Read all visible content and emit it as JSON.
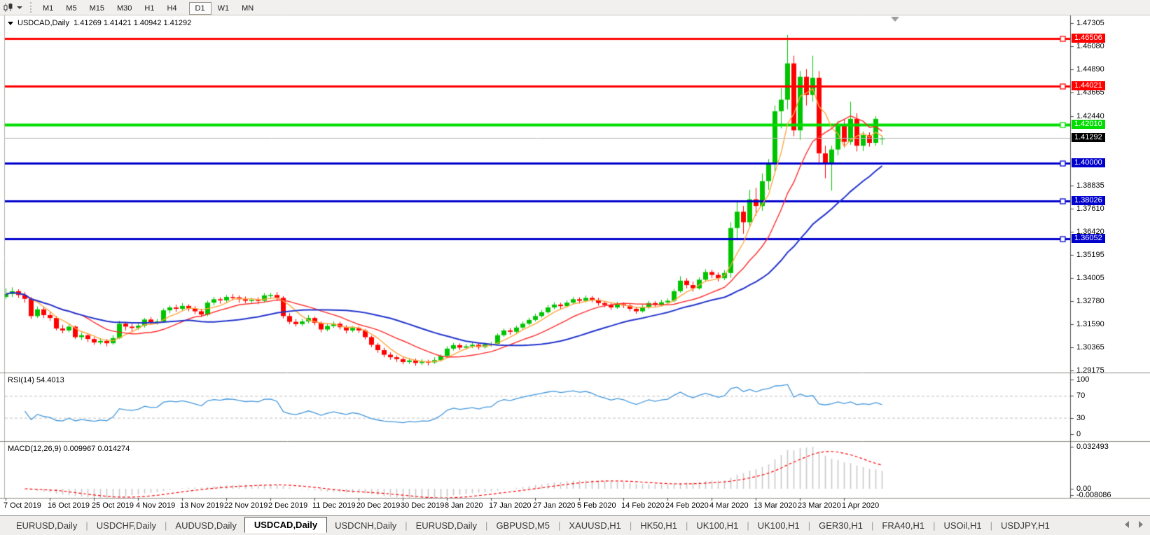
{
  "toolbar": {
    "chart_type_icon": "candlestick-chart-icon",
    "timeframes": [
      "M1",
      "M5",
      "M15",
      "M30",
      "H1",
      "H4",
      "D1",
      "W1",
      "MN"
    ],
    "active_timeframe": "D1"
  },
  "chart_data": {
    "type": "candlestick",
    "symbol": "USDCAD,Daily",
    "title_line": "USDCAD,Daily  1.41269 1.41421 1.40942 1.41292",
    "ohlc_display": {
      "open": "1.41269",
      "high": "1.41421",
      "low": "1.40942",
      "close": "1.41292"
    },
    "ylim": [
      1.29087,
      1.47707
    ],
    "up_color": "#00c400",
    "down_color": "#ff0000",
    "price_axis_ticks": [
      "1.47305",
      "1.46080",
      "1.44890",
      "1.43665",
      "1.42440",
      "1.38835",
      "1.37610",
      "1.36420",
      "1.35195",
      "1.34005",
      "1.32780",
      "1.31590",
      "1.30365",
      "1.29175"
    ],
    "levels": [
      {
        "value": 1.46506,
        "label": "1.46506",
        "color": "#ff0000",
        "width": 3
      },
      {
        "value": 1.44021,
        "label": "1.44021",
        "color": "#ff0000",
        "width": 3
      },
      {
        "value": 1.4201,
        "label": "1.42010",
        "color": "#00dd00",
        "width": 4
      },
      {
        "value": 1.4,
        "label": "1.40000",
        "color": "#0000cd",
        "width": 3
      },
      {
        "value": 1.38026,
        "label": "1.38026",
        "color": "#0000cd",
        "width": 3
      },
      {
        "value": 1.36052,
        "label": "1.36052",
        "color": "#0000cd",
        "width": 3
      }
    ],
    "current_price": {
      "value": 1.41292,
      "label": "1.41292",
      "line_color": "#b9b9b9",
      "badge_bg": "#000000"
    },
    "moving_averages": [
      {
        "name": "ma-fast",
        "period": 5,
        "color": "#ffa640",
        "width": 1.4
      },
      {
        "name": "ma-medium",
        "period": 13,
        "color": "#ff2a2a",
        "width": 1.4
      },
      {
        "name": "ma-slow",
        "period": 30,
        "color": "#2233cc",
        "width": 2
      }
    ],
    "x_labels": [
      "7 Oct 2019",
      "16 Oct 2019",
      "25 Oct 2019",
      "4 Nov 2019",
      "13 Nov 2019",
      "22 Nov 2019",
      "2 Dec 2019",
      "11 Dec 2019",
      "20 Dec 2019",
      "30 Dec 2019",
      "8 Jan 2020",
      "17 Jan 2020",
      "27 Jan 2020",
      "5 Feb 2020",
      "14 Feb 2020",
      "24 Feb 2020",
      "4 Mar 2020",
      "13 Mar 2020",
      "23 Mar 2020",
      "1 Apr 2020"
    ],
    "x_label_step": 7,
    "candles": [
      [
        1.33,
        1.3345,
        1.329,
        1.3315
      ],
      [
        1.3315,
        1.335,
        1.33,
        1.333
      ],
      [
        1.333,
        1.334,
        1.3295,
        1.331
      ],
      [
        1.331,
        1.3325,
        1.327,
        1.329
      ],
      [
        1.329,
        1.33,
        1.3185,
        1.32
      ],
      [
        1.32,
        1.325,
        1.319,
        1.3235
      ],
      [
        1.3235,
        1.3245,
        1.319,
        1.3205
      ],
      [
        1.3205,
        1.322,
        1.3175,
        1.319
      ],
      [
        1.319,
        1.32,
        1.3125,
        1.3135
      ],
      [
        1.3135,
        1.3155,
        1.311,
        1.3125
      ],
      [
        1.3125,
        1.316,
        1.3115,
        1.3145
      ],
      [
        1.3145,
        1.315,
        1.308,
        1.309
      ],
      [
        1.309,
        1.3115,
        1.3075,
        1.31
      ],
      [
        1.31,
        1.311,
        1.3065,
        1.308
      ],
      [
        1.308,
        1.309,
        1.305,
        1.3062
      ],
      [
        1.3062,
        1.3085,
        1.3052,
        1.307
      ],
      [
        1.307,
        1.308,
        1.3042,
        1.3058
      ],
      [
        1.3058,
        1.31,
        1.305,
        1.3085
      ],
      [
        1.3085,
        1.3175,
        1.308,
        1.316
      ],
      [
        1.316,
        1.317,
        1.3125,
        1.3145
      ],
      [
        1.3145,
        1.316,
        1.312,
        1.3138
      ],
      [
        1.3138,
        1.3165,
        1.3128,
        1.315
      ],
      [
        1.315,
        1.319,
        1.314,
        1.3182
      ],
      [
        1.3182,
        1.3195,
        1.3155,
        1.3168
      ],
      [
        1.3168,
        1.3185,
        1.3155,
        1.3172
      ],
      [
        1.3172,
        1.324,
        1.3165,
        1.323
      ],
      [
        1.323,
        1.3255,
        1.3215,
        1.3245
      ],
      [
        1.3245,
        1.326,
        1.3222,
        1.3238
      ],
      [
        1.3238,
        1.3268,
        1.3228,
        1.3253
      ],
      [
        1.3253,
        1.3262,
        1.3225,
        1.324
      ],
      [
        1.324,
        1.3252,
        1.321,
        1.3225
      ],
      [
        1.3225,
        1.3238,
        1.3195,
        1.3208
      ],
      [
        1.3208,
        1.328,
        1.32,
        1.327
      ],
      [
        1.327,
        1.33,
        1.3255,
        1.3288
      ],
      [
        1.3288,
        1.3298,
        1.3265,
        1.3282
      ],
      [
        1.3282,
        1.331,
        1.327,
        1.33
      ],
      [
        1.33,
        1.3315,
        1.3282,
        1.3298
      ],
      [
        1.3298,
        1.3308,
        1.327,
        1.3288
      ],
      [
        1.3288,
        1.3302,
        1.3268,
        1.328
      ],
      [
        1.328,
        1.3295,
        1.3265,
        1.3284
      ],
      [
        1.3284,
        1.3298,
        1.3262,
        1.328
      ],
      [
        1.328,
        1.332,
        1.327,
        1.3308
      ],
      [
        1.3308,
        1.3322,
        1.329,
        1.331
      ],
      [
        1.331,
        1.3325,
        1.3278,
        1.3295
      ],
      [
        1.3295,
        1.3305,
        1.3188,
        1.32
      ],
      [
        1.32,
        1.3215,
        1.3158,
        1.317
      ],
      [
        1.317,
        1.3185,
        1.3145,
        1.3158
      ],
      [
        1.3158,
        1.3185,
        1.3148,
        1.3172
      ],
      [
        1.3172,
        1.3205,
        1.3162,
        1.319
      ],
      [
        1.319,
        1.3198,
        1.3152,
        1.3165
      ],
      [
        1.3165,
        1.3172,
        1.3115,
        1.313
      ],
      [
        1.313,
        1.316,
        1.312,
        1.3148
      ],
      [
        1.3148,
        1.3172,
        1.3138,
        1.316
      ],
      [
        1.316,
        1.317,
        1.313,
        1.3142
      ],
      [
        1.3142,
        1.3152,
        1.311,
        1.3125
      ],
      [
        1.3125,
        1.3148,
        1.3115,
        1.3138
      ],
      [
        1.3138,
        1.3145,
        1.3112,
        1.3125
      ],
      [
        1.3125,
        1.3132,
        1.3078,
        1.309
      ],
      [
        1.309,
        1.3098,
        1.3038,
        1.305
      ],
      [
        1.305,
        1.306,
        1.3008,
        1.3022
      ],
      [
        1.3022,
        1.3035,
        1.2985,
        1.2998
      ],
      [
        1.2998,
        1.301,
        1.2972,
        1.2985
      ],
      [
        1.2985,
        1.2995,
        1.296,
        1.2975
      ],
      [
        1.2975,
        1.2985,
        1.2948,
        1.296
      ],
      [
        1.296,
        1.298,
        1.295,
        1.2968
      ],
      [
        1.2968,
        1.2978,
        1.294,
        1.2955
      ],
      [
        1.2955,
        1.2975,
        1.2945,
        1.2962
      ],
      [
        1.2962,
        1.2972,
        1.2942,
        1.2958
      ],
      [
        1.2958,
        1.2985,
        1.295,
        1.297
      ],
      [
        1.297,
        1.3,
        1.2962,
        1.2992
      ],
      [
        1.2992,
        1.3042,
        1.2985,
        1.303
      ],
      [
        1.303,
        1.306,
        1.302,
        1.3048
      ],
      [
        1.3048,
        1.3058,
        1.3022,
        1.3035
      ],
      [
        1.3035,
        1.3055,
        1.3025,
        1.3042
      ],
      [
        1.3042,
        1.3062,
        1.3032,
        1.305
      ],
      [
        1.305,
        1.3058,
        1.3025,
        1.3038
      ],
      [
        1.3038,
        1.3062,
        1.303,
        1.3052
      ],
      [
        1.3052,
        1.3065,
        1.304,
        1.3055
      ],
      [
        1.3055,
        1.311,
        1.3048,
        1.31
      ],
      [
        1.31,
        1.3135,
        1.3092,
        1.3125
      ],
      [
        1.3125,
        1.3138,
        1.3102,
        1.3118
      ],
      [
        1.3118,
        1.315,
        1.311,
        1.314
      ],
      [
        1.314,
        1.3172,
        1.3132,
        1.316
      ],
      [
        1.316,
        1.3192,
        1.3152,
        1.318
      ],
      [
        1.318,
        1.3212,
        1.3172,
        1.32
      ],
      [
        1.32,
        1.3232,
        1.3192,
        1.322
      ],
      [
        1.322,
        1.3258,
        1.3212,
        1.3245
      ],
      [
        1.3245,
        1.3272,
        1.3235,
        1.326
      ],
      [
        1.326,
        1.327,
        1.3238,
        1.3252
      ],
      [
        1.3252,
        1.3282,
        1.3244,
        1.327
      ],
      [
        1.327,
        1.33,
        1.3262,
        1.3288
      ],
      [
        1.3288,
        1.3298,
        1.3265,
        1.328
      ],
      [
        1.328,
        1.3308,
        1.3272,
        1.3295
      ],
      [
        1.3295,
        1.3305,
        1.3272,
        1.3285
      ],
      [
        1.3285,
        1.3295,
        1.3255,
        1.3268
      ],
      [
        1.3268,
        1.3278,
        1.3245,
        1.3258
      ],
      [
        1.3258,
        1.3268,
        1.3232,
        1.3245
      ],
      [
        1.3245,
        1.3275,
        1.3238,
        1.3262
      ],
      [
        1.3262,
        1.3272,
        1.3242,
        1.3255
      ],
      [
        1.3255,
        1.3265,
        1.3225,
        1.3238
      ],
      [
        1.3238,
        1.3248,
        1.3212,
        1.3225
      ],
      [
        1.3225,
        1.3258,
        1.3218,
        1.3245
      ],
      [
        1.3245,
        1.328,
        1.3238,
        1.3268
      ],
      [
        1.3268,
        1.3278,
        1.3245,
        1.3258
      ],
      [
        1.3258,
        1.3285,
        1.325,
        1.3272
      ],
      [
        1.3272,
        1.3292,
        1.3262,
        1.328
      ],
      [
        1.328,
        1.3342,
        1.3272,
        1.333
      ],
      [
        1.333,
        1.3408,
        1.3322,
        1.3385
      ],
      [
        1.3385,
        1.3398,
        1.3345,
        1.3362
      ],
      [
        1.3362,
        1.338,
        1.3328,
        1.3345
      ],
      [
        1.3345,
        1.3402,
        1.3338,
        1.339
      ],
      [
        1.339,
        1.3445,
        1.3382,
        1.343
      ],
      [
        1.343,
        1.3442,
        1.3398,
        1.3415
      ],
      [
        1.3415,
        1.3428,
        1.338,
        1.3398
      ],
      [
        1.3398,
        1.344,
        1.3388,
        1.3425
      ],
      [
        1.3425,
        1.369,
        1.34,
        1.366
      ],
      [
        1.366,
        1.38,
        1.36,
        1.3745
      ],
      [
        1.3745,
        1.3775,
        1.363,
        1.369
      ],
      [
        1.369,
        1.386,
        1.366,
        1.381
      ],
      [
        1.381,
        1.387,
        1.3725,
        1.3775
      ],
      [
        1.3775,
        1.3945,
        1.375,
        1.3905
      ],
      [
        1.3905,
        1.402,
        1.386,
        1.3995
      ],
      [
        1.3995,
        1.43,
        1.395,
        1.427
      ],
      [
        1.427,
        1.439,
        1.418,
        1.433
      ],
      [
        1.433,
        1.4669,
        1.428,
        1.452
      ],
      [
        1.452,
        1.456,
        1.414,
        1.417
      ],
      [
        1.417,
        1.448,
        1.412,
        1.445
      ],
      [
        1.445,
        1.449,
        1.43,
        1.4355
      ],
      [
        1.4355,
        1.456,
        1.432,
        1.4445
      ],
      [
        1.4445,
        1.448,
        1.399,
        1.405
      ],
      [
        1.405,
        1.409,
        1.392,
        1.3995
      ],
      [
        1.3995,
        1.409,
        1.3855,
        1.407
      ],
      [
        1.407,
        1.422,
        1.404,
        1.42
      ],
      [
        1.42,
        1.423,
        1.408,
        1.411
      ],
      [
        1.411,
        1.432,
        1.4095,
        1.423
      ],
      [
        1.423,
        1.426,
        1.406,
        1.409
      ],
      [
        1.409,
        1.4165,
        1.4062,
        1.4145
      ],
      [
        1.4145,
        1.416,
        1.4085,
        1.4105
      ],
      [
        1.4105,
        1.4245,
        1.409,
        1.423
      ],
      [
        1.41269,
        1.41421,
        1.40942,
        1.41292
      ]
    ],
    "rsi": {
      "label": "RSI(14) 54.4013",
      "period": 14,
      "value": "54.4013",
      "levels": [
        70,
        30
      ],
      "axis_ticks": [
        "100",
        "70",
        "30",
        "0"
      ],
      "color": "#4296db"
    },
    "macd": {
      "label": "MACD(12,26,9) 0.009967 0.014274",
      "fast": 12,
      "slow": 26,
      "signal": 9,
      "main_value": "0.009967",
      "signal_value": "0.014274",
      "axis_ticks": [
        "0.032493",
        "0.00",
        "-0.008086"
      ],
      "histogram_color": "#c9c9c9",
      "signal_color": "#ff0000"
    }
  },
  "tabs": {
    "labels": [
      "EURUSD,Daily",
      "USDCHF,Daily",
      "AUDUSD,Daily",
      "USDCAD,Daily",
      "USDCNH,Daily",
      "EURUSD,Daily",
      "GBPUSD,M5",
      "XAUUSD,H1",
      "HK50,H1",
      "UK100,H1",
      "UK100,H1",
      "GER30,H1",
      "FRA40,H1",
      "USOil,H1",
      "USDJPY,H1"
    ],
    "active_index": 3
  }
}
